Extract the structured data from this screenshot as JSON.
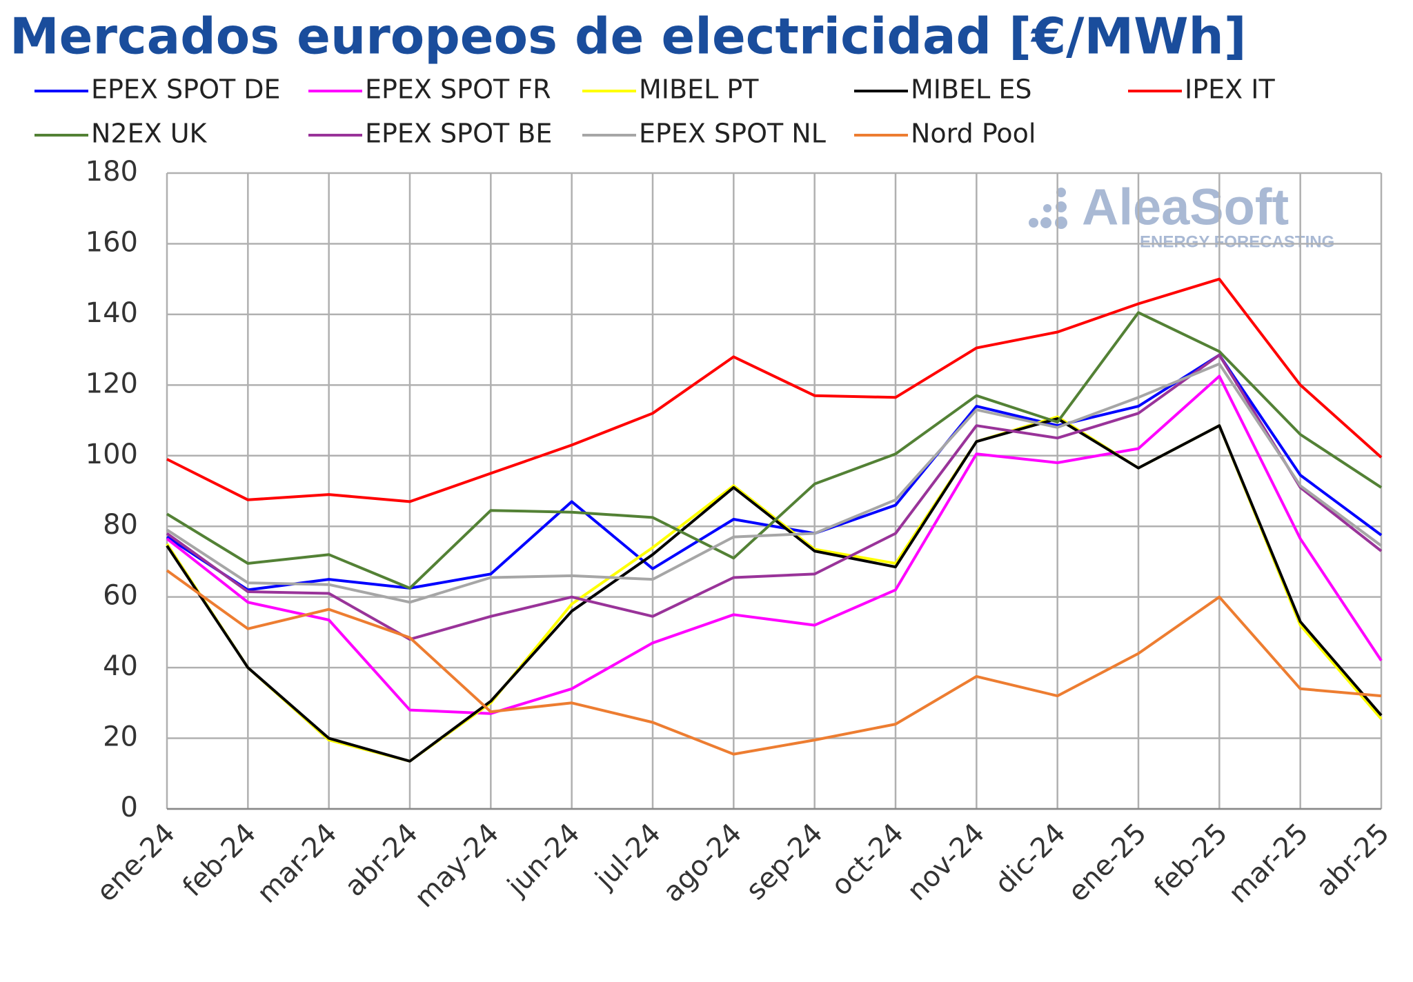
{
  "chart_data": {
    "type": "line",
    "title": "Mercados europeos de electricidad [€/MWh]",
    "watermark": {
      "brand": "AleaSoft",
      "tagline": "ENERGY FORECASTING"
    },
    "categories": [
      "ene-24",
      "feb-24",
      "mar-24",
      "abr-24",
      "may-24",
      "jun-24",
      "jul-24",
      "ago-24",
      "sep-24",
      "oct-24",
      "nov-24",
      "dic-24",
      "ene-25",
      "feb-25",
      "mar-25",
      "abr-25"
    ],
    "series": [
      {
        "name": "EPEX SPOT DE",
        "color": "#0000ff",
        "values": [
          77,
          62,
          65,
          62.5,
          66.5,
          87,
          68,
          82,
          78,
          86,
          114,
          108.5,
          114,
          128.5,
          94.5,
          77.5
        ]
      },
      {
        "name": "EPEX SPOT FR",
        "color": "#ff00ff",
        "values": [
          76.5,
          58.5,
          53.5,
          28,
          27,
          34,
          47,
          55,
          52,
          62,
          100.5,
          98,
          102,
          122.5,
          76.5,
          42
        ]
      },
      {
        "name": "MIBEL PT",
        "color": "#ffff00",
        "values": [
          75,
          40,
          19.5,
          13.5,
          30,
          58,
          74,
          91.5,
          73.5,
          69.5,
          104,
          111,
          96.5,
          108.5,
          52,
          25.5
        ]
      },
      {
        "name": "MIBEL ES",
        "color": "#000000",
        "values": [
          74.5,
          40,
          20,
          13.5,
          30.5,
          56,
          72,
          91,
          73,
          68.5,
          104,
          110.5,
          96.5,
          108.5,
          53,
          26.5
        ]
      },
      {
        "name": "IPEX IT",
        "color": "#ff0000",
        "values": [
          99,
          87.5,
          89,
          87,
          95,
          103,
          112,
          128,
          117,
          116.5,
          130.5,
          135,
          143,
          150,
          120,
          99.5
        ]
      },
      {
        "name": "N2EX UK",
        "color": "#538135",
        "values": [
          83.5,
          69.5,
          72,
          62.5,
          84.5,
          84,
          82.5,
          71,
          92,
          100.5,
          117,
          109.5,
          140.5,
          129.5,
          106,
          91
        ]
      },
      {
        "name": "EPEX SPOT BE",
        "color": "#993399",
        "values": [
          78,
          61.5,
          61,
          48,
          54.5,
          60,
          54.5,
          65.5,
          66.5,
          78,
          108.5,
          105,
          112,
          128.5,
          91,
          73
        ]
      },
      {
        "name": "EPEX SPOT NL",
        "color": "#a6a6a6",
        "values": [
          79,
          64,
          63.5,
          58.5,
          65.5,
          66,
          65,
          77,
          78,
          87.5,
          113,
          108,
          116.5,
          126,
          91.5,
          74.5
        ]
      },
      {
        "name": "Nord Pool",
        "color": "#ed7d31",
        "values": [
          67.5,
          51,
          56.5,
          48.5,
          27.5,
          30,
          24.5,
          15.5,
          19.5,
          24,
          37.5,
          32,
          44,
          60,
          34,
          32
        ]
      }
    ],
    "ylim": [
      0,
      180
    ],
    "yticks": [
      0,
      20,
      40,
      60,
      80,
      100,
      120,
      140,
      160,
      180
    ],
    "grid": true
  }
}
